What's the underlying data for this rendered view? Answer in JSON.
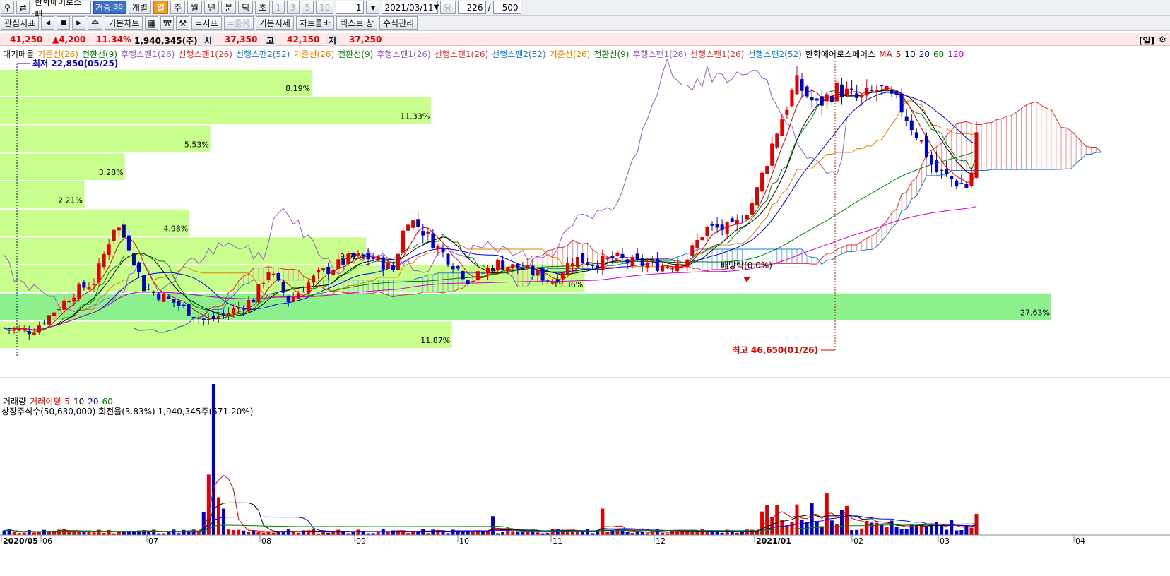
{
  "toolbar": {
    "stock_name": "한화에어로스페",
    "tag_label": "거종",
    "tag_num": "30",
    "individual_label": "개별",
    "periods": [
      "일",
      "주",
      "월",
      "년",
      "분",
      "틱",
      "초"
    ],
    "intervals": [
      "1",
      "3",
      "5",
      "10"
    ],
    "interval_value": "1",
    "date": "2021/03/11",
    "dang_label": "당",
    "count_value": "226",
    "slash": "/",
    "total_value": "500"
  },
  "toolbar2": {
    "interest_label": "관심지표",
    "su_label": "수",
    "basic_chart": "기본차트",
    "won_label": "₩",
    "indicator_label": "=지표",
    "item_label": "=종목",
    "basic_quote": "기본시세",
    "chart_toolbar": "차트툴바",
    "text_window": "텍스트 창",
    "formula_mgmt": "수식관리"
  },
  "quote": {
    "price": "41,250",
    "change": "▲4,200",
    "change_pct": "11.34%",
    "volume": "1,940,345(주)",
    "open_label": "시",
    "open": "37,350",
    "high_label": "고",
    "high": "42,150",
    "low_label": "저",
    "low": "37,250",
    "period_badge": "[일]"
  },
  "legend_top": {
    "items": [
      {
        "text": "대기매물",
        "color": "#000000"
      },
      {
        "text": "기준선(26)",
        "color": "#e87b00"
      },
      {
        "text": "전환선(9)",
        "color": "#008000"
      },
      {
        "text": "후행스팬1(26)",
        "color": "#9b59d0"
      },
      {
        "text": "선행스팬1(26)",
        "color": "#e03030"
      },
      {
        "text": "선행스팬2(52)",
        "color": "#1e78d0"
      },
      {
        "text": "기준선(26)",
        "color": "#e87b00"
      },
      {
        "text": "전환선(9)",
        "color": "#008000"
      },
      {
        "text": "후행스팬1(26)",
        "color": "#9b59d0"
      },
      {
        "text": "선행스팬1(26)",
        "color": "#e03030"
      },
      {
        "text": "선행스팬2(52)",
        "color": "#1e78d0"
      },
      {
        "text": "기준선(26)",
        "color": "#e87b00"
      },
      {
        "text": "전환선(9)",
        "color": "#008000"
      },
      {
        "text": "후행스팬1(26)",
        "color": "#9b59d0"
      },
      {
        "text": "선행스팬1(26)",
        "color": "#e03030"
      },
      {
        "text": "선행스팬2(52)",
        "color": "#1e78d0"
      },
      {
        "text": "한화에어로스페이스",
        "color": "#000000"
      },
      {
        "text": "MA",
        "color": "#e00000"
      },
      {
        "text": "5",
        "color": "#e00000"
      },
      {
        "text": "10",
        "color": "#000000"
      },
      {
        "text": "20",
        "color": "#0000e0"
      },
      {
        "text": "60",
        "color": "#008000"
      },
      {
        "text": "120",
        "color": "#d000d0"
      }
    ]
  },
  "annotations": {
    "low_marker": "최저 22,850(05/25)",
    "high_marker": "최고 46,650(01/26)",
    "dividend": "배당락(0.0%)"
  },
  "volume_legend": {
    "items": [
      {
        "text": "거래량",
        "color": "#000000"
      },
      {
        "text": "거래이평",
        "color": "#e00000"
      },
      {
        "text": "5",
        "color": "#e00000"
      },
      {
        "text": "10",
        "color": "#000000"
      },
      {
        "text": "20",
        "color": "#0000e0"
      },
      {
        "text": "60",
        "color": "#008000"
      }
    ],
    "shares_info": "상장주식수(50,630,000) 회전율(3.83%) 1,940,345주(571.20%)"
  },
  "chart_data": {
    "type": "candlestick",
    "x_axis_labels": [
      "2020/05",
      "06",
      "07",
      "08",
      "09",
      "10",
      "11",
      "12",
      "2021/01",
      "02",
      "03",
      "04"
    ],
    "volume_profile": [
      {
        "pct": "8.19%",
        "value": 8.19
      },
      {
        "pct": "11.33%",
        "value": 11.33
      },
      {
        "pct": "5.53%",
        "value": 5.53
      },
      {
        "pct": "3.28%",
        "value": 3.28
      },
      {
        "pct": "2.21%",
        "value": 2.21
      },
      {
        "pct": "4.98%",
        "value": 4.98
      },
      {
        "pct": "9.62%",
        "value": 9.62
      },
      {
        "pct": "15.36%",
        "value": 15.36
      },
      {
        "pct": "27.63%",
        "value": 27.63
      },
      {
        "pct": "11.87%",
        "value": 11.87
      }
    ],
    "price_low": 22850,
    "price_high": 46650,
    "last_close": 41250,
    "colors": {
      "up": "#e00000",
      "down": "#0000c8",
      "profile": "#c8ff8c",
      "profile_max": "#8cf08c",
      "cloud_up": "#ff8c8c",
      "cloud_down": "#6aa8ff"
    }
  }
}
